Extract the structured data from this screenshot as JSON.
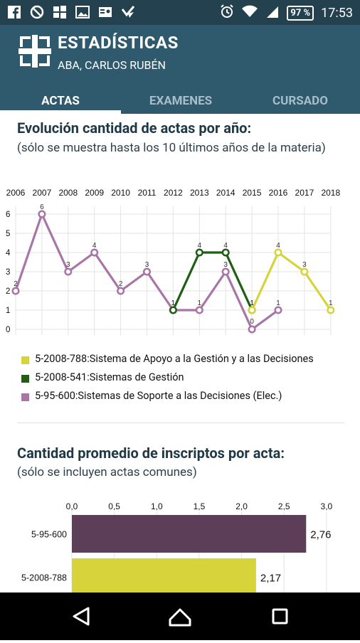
{
  "status_bar": {
    "left_icons": [
      "facebook-icon",
      "no-disturb-icon",
      "windows-icon",
      "image-icon",
      "contact-card-icon",
      "check-mark-icon"
    ],
    "right_icons": [
      "alarm-icon",
      "wifi-icon",
      "signal-icon"
    ],
    "battery": "97 %",
    "time": "17:53"
  },
  "app_bar": {
    "title": "ESTADÍSTICAS",
    "subtitle": "ABA, CARLOS RUBÉN",
    "logo": "utn-logo-icon"
  },
  "tabs": [
    {
      "label": "ACTAS",
      "active": true
    },
    {
      "label": "EXAMENES",
      "active": false
    },
    {
      "label": "CURSADO",
      "active": false
    }
  ],
  "section1": {
    "title": "Evolución cantidad de actas por año:",
    "note": "(sólo se muestra hasta los 10 últimos años de la materia)"
  },
  "section2": {
    "title": "Cantidad promedio de inscriptos por acta:",
    "note": "(sólo se incluyen actas comunes)"
  },
  "chart_data": [
    {
      "type": "line",
      "x": [
        "2006",
        "2007",
        "2008",
        "2009",
        "2010",
        "2011",
        "2012",
        "2013",
        "2014",
        "2015",
        "2016",
        "2017",
        "2018"
      ],
      "ylim": [
        0,
        6
      ],
      "yticks": [
        "0",
        "1",
        "2",
        "3",
        "4",
        "5",
        "6"
      ],
      "grid": true,
      "legend_position": "bottom",
      "series": [
        {
          "name": "5-2008-788:Sistema de Apoyo a la Gestión y a las Decisiones",
          "color": "#d6d43a",
          "points": [
            [
              "2015",
              1
            ],
            [
              "2016",
              4
            ],
            [
              "2017",
              3
            ],
            [
              "2018",
              1
            ]
          ]
        },
        {
          "name": "5-2008-541:Sistemas de Gestión",
          "color": "#1f5e14",
          "points": [
            [
              "2012",
              1
            ],
            [
              "2013",
              4
            ],
            [
              "2014",
              4
            ],
            [
              "2015",
              1
            ]
          ]
        },
        {
          "name": "5-95-600:Sistemas de Soporte a las Decisiones (Elec.)",
          "color": "#a875a6",
          "points": [
            [
              "2006",
              2
            ],
            [
              "2007",
              6
            ],
            [
              "2008",
              3
            ],
            [
              "2009",
              4
            ],
            [
              "2010",
              2
            ],
            [
              "2011",
              3
            ],
            [
              "2012",
              1
            ],
            [
              "2013",
              1
            ],
            [
              "2014",
              3
            ],
            [
              "2015",
              0
            ],
            [
              "2016",
              1
            ]
          ]
        }
      ]
    },
    {
      "type": "bar",
      "orientation": "horizontal",
      "categories": [
        "5-95-600",
        "5-2008-788"
      ],
      "values": [
        2.76,
        2.17
      ],
      "value_labels": [
        "2,76",
        "2,17"
      ],
      "colors": [
        "#5d3e59",
        "#d6d43a"
      ],
      "xlim": [
        0,
        3
      ],
      "xticks": [
        "0,0",
        "0,5",
        "1,0",
        "1,5",
        "2,0",
        "2,5",
        "3,0"
      ],
      "grid": true
    }
  ],
  "nav_bar": {
    "buttons": [
      "back-icon",
      "home-icon",
      "recents-icon"
    ]
  }
}
